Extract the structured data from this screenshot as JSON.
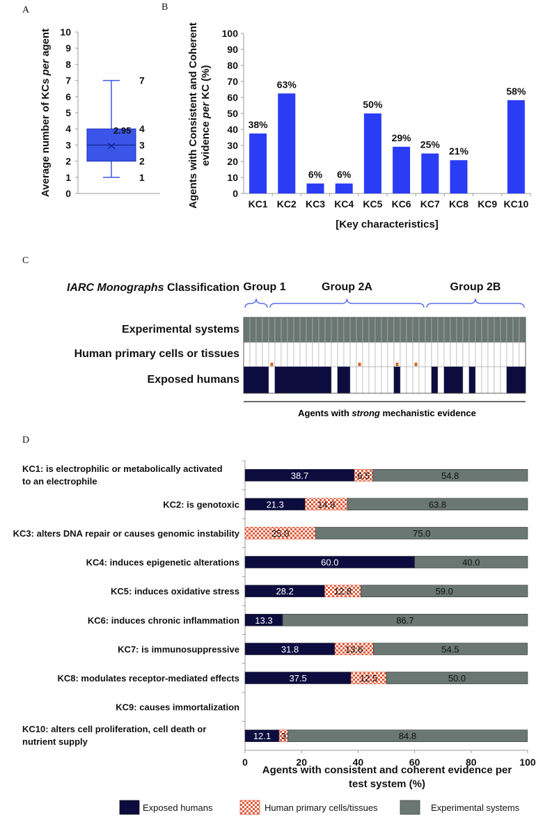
{
  "panel_letters": {
    "a": "A",
    "b": "B",
    "c": "C",
    "d": "D"
  },
  "colors": {
    "blue": "#2b3cf5",
    "navy": "#0c0c3f",
    "grey": "#6a7773",
    "checker_red": "#e05a3a",
    "box_blue": "#3a55e8"
  },
  "chart_data": [
    {
      "id": "A",
      "type": "box",
      "ylabel_parts": [
        "Average number of KCs ",
        "per",
        " agent"
      ],
      "yticks": [
        "0",
        "1",
        "2",
        "3",
        "4",
        "5",
        "6",
        "7",
        "8",
        "9",
        "10"
      ],
      "ylim": [
        0,
        10
      ],
      "stats": {
        "min": 1,
        "q1": 2,
        "median": 3,
        "q3": 4,
        "max": 7,
        "mean": 2.95
      },
      "mean_label": "2.95",
      "side_labels": [
        {
          "value": 7,
          "text": "7"
        },
        {
          "value": 4,
          "text": "4"
        },
        {
          "value": 3,
          "text": "3"
        },
        {
          "value": 2,
          "text": "2"
        },
        {
          "value": 1,
          "text": "1"
        }
      ]
    },
    {
      "id": "B",
      "type": "bar",
      "title": "",
      "ylabel_line1": "Agents with Consistent and Coherent",
      "ylabel_line2_parts": [
        "evidence ",
        "per",
        " KC (%)"
      ],
      "xlabel": "[Key characteristics]",
      "ylim": [
        0,
        100
      ],
      "yticks": [
        "0",
        "10",
        "20",
        "30",
        "40",
        "50",
        "60",
        "70",
        "80",
        "90",
        "100"
      ],
      "categories": [
        "KC1",
        "KC2",
        "KC3",
        "KC4",
        "KC5",
        "KC6",
        "KC7",
        "KC8",
        "KC9",
        "KC10"
      ],
      "values": [
        37.5,
        62.5,
        6.25,
        6.25,
        50,
        29.2,
        25,
        20.8,
        0,
        58.3
      ],
      "value_labels": [
        "38%",
        "63%",
        "6%",
        "6%",
        "50%",
        "29%",
        "25%",
        "21%",
        "",
        "58%"
      ]
    },
    {
      "id": "C",
      "type": "heatmap",
      "classification_title_italic": "IARC Monographs",
      "classification_title_rest": " Classification",
      "groups": [
        {
          "label": "Group 1",
          "from": 0,
          "to": 4
        },
        {
          "label": "Group 2A",
          "from": 4,
          "to": 29
        },
        {
          "label": "Group 2B",
          "from": 29,
          "to": 45
        }
      ],
      "rows": [
        "Experimental systems",
        "Human primary cells or tissues",
        "Exposed humans"
      ],
      "n_agents": 45,
      "experimental": "all",
      "human_primary_marks": [
        4,
        18,
        24,
        27
      ],
      "exposed_humans": [
        1,
        1,
        1,
        1,
        0,
        1,
        1,
        1,
        1,
        1,
        1,
        1,
        1,
        1,
        0,
        1,
        1,
        0,
        0,
        0,
        0,
        0,
        0,
        0,
        1,
        0,
        0,
        0,
        0,
        0,
        1,
        0,
        1,
        1,
        1,
        0,
        1,
        0,
        0,
        0,
        0,
        0,
        1,
        1,
        1
      ],
      "footer_pre": "Agents with ",
      "footer_italic": "strong",
      "footer_post": " mechanistic evidence"
    },
    {
      "id": "D",
      "type": "stacked-bar-horizontal",
      "xlabel_line1": "Agents with consistent and coherent evidence per",
      "xlabel_line2": "test system (%)",
      "xlim": [
        0,
        100
      ],
      "xticks": [
        "0",
        "20",
        "40",
        "60",
        "80",
        "100"
      ],
      "categories": [
        [
          "KC1: is electrophilic or metabolically activated",
          "to an electrophile"
        ],
        [
          "KC2: is genotoxic"
        ],
        [
          "KC3: alters DNA repair or causes genomic instability"
        ],
        [
          "KC4: induces epigenetic alterations"
        ],
        [
          "KC5: induces oxidative stress"
        ],
        [
          "KC6: induces chronic inflammation"
        ],
        [
          "KC7: is immunosuppressive"
        ],
        [
          "KC8: modulates receptor-mediated effects"
        ],
        [
          "KC9: causes immortalization"
        ],
        [
          "KC10: alters cell proliferation, cell death or",
          "nutrient supply"
        ]
      ],
      "series": [
        {
          "name": "Exposed humans",
          "values": [
            38.7,
            21.3,
            0,
            60.0,
            28.2,
            13.3,
            31.8,
            37.5,
            0,
            12.1
          ],
          "labels": [
            "38.7",
            "21.3",
            "",
            "60.0",
            "28.2",
            "13.3",
            "31.8",
            "37.5",
            "",
            "12.1"
          ]
        },
        {
          "name": "Human primary cells/tissues",
          "values": [
            6.5,
            14.9,
            25.0,
            0,
            12.8,
            0,
            13.6,
            12.5,
            0,
            3
          ],
          "labels": [
            "6.5",
            "14.9",
            "25.0",
            "",
            "12.8",
            "",
            "13.6",
            "12.5",
            "",
            "3"
          ]
        },
        {
          "name": "Experimental systems",
          "values": [
            54.8,
            63.8,
            75.0,
            40.0,
            59.0,
            86.7,
            54.5,
            50.0,
            0,
            84.8
          ],
          "labels": [
            "54.8",
            "63.8",
            "75.0",
            "40.0",
            "59.0",
            "86.7",
            "54.5",
            "50.0",
            "",
            "84.8"
          ]
        }
      ],
      "legend": [
        "Exposed humans",
        "Human primary cells/tissues",
        "Experimental systems"
      ]
    }
  ]
}
